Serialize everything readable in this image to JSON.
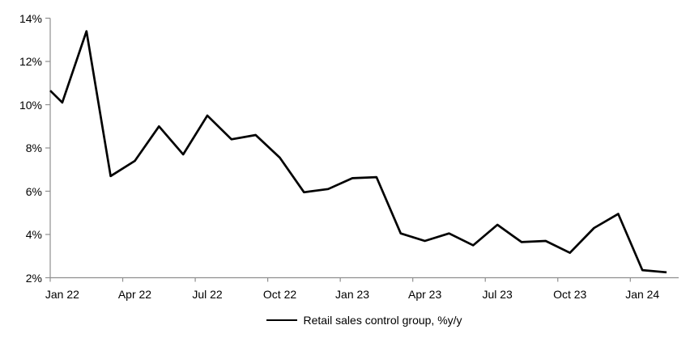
{
  "chart_data": {
    "type": "line",
    "title": "",
    "xlabel": "",
    "ylabel": "",
    "ylim": [
      2,
      14
    ],
    "y_tick_labels": [
      "2%",
      "4%",
      "6%",
      "8%",
      "10%",
      "12%",
      "14%"
    ],
    "x_tick_labels": [
      "Jan 22",
      "Apr 22",
      "Jul 22",
      "Oct 22",
      "Jan 23",
      "Apr 23",
      "Jul 23",
      "Oct 23",
      "Jan 24"
    ],
    "grid": false,
    "axis_color": "#8f8f8f",
    "text_color": "#000000",
    "legend": {
      "position": "bottom-center",
      "label": "Retail sales control group, %y/y"
    },
    "series": [
      {
        "name": "Retail sales control group, %y/y",
        "color": "#000000",
        "start_at_axis_value": 10.65,
        "x": [
          "Jan 22",
          "Feb 22",
          "Mar 22",
          "Apr 22",
          "May 22",
          "Jun 22",
          "Jul 22",
          "Aug 22",
          "Sep 22",
          "Oct 22",
          "Nov 22",
          "Dec 22",
          "Jan 23",
          "Feb 23",
          "Mar 23",
          "Apr 23",
          "May 23",
          "Jun 23",
          "Jul 23",
          "Aug 23",
          "Sep 23",
          "Oct 23",
          "Nov 23",
          "Dec 23",
          "Jan 24",
          "Feb 24"
        ],
        "values": [
          10.1,
          13.4,
          6.7,
          7.4,
          9.0,
          7.7,
          9.5,
          8.4,
          8.6,
          7.55,
          5.95,
          6.1,
          6.6,
          6.65,
          4.05,
          3.7,
          4.05,
          3.5,
          4.45,
          3.65,
          3.7,
          3.15,
          4.3,
          4.95,
          2.35,
          2.25
        ]
      }
    ]
  }
}
